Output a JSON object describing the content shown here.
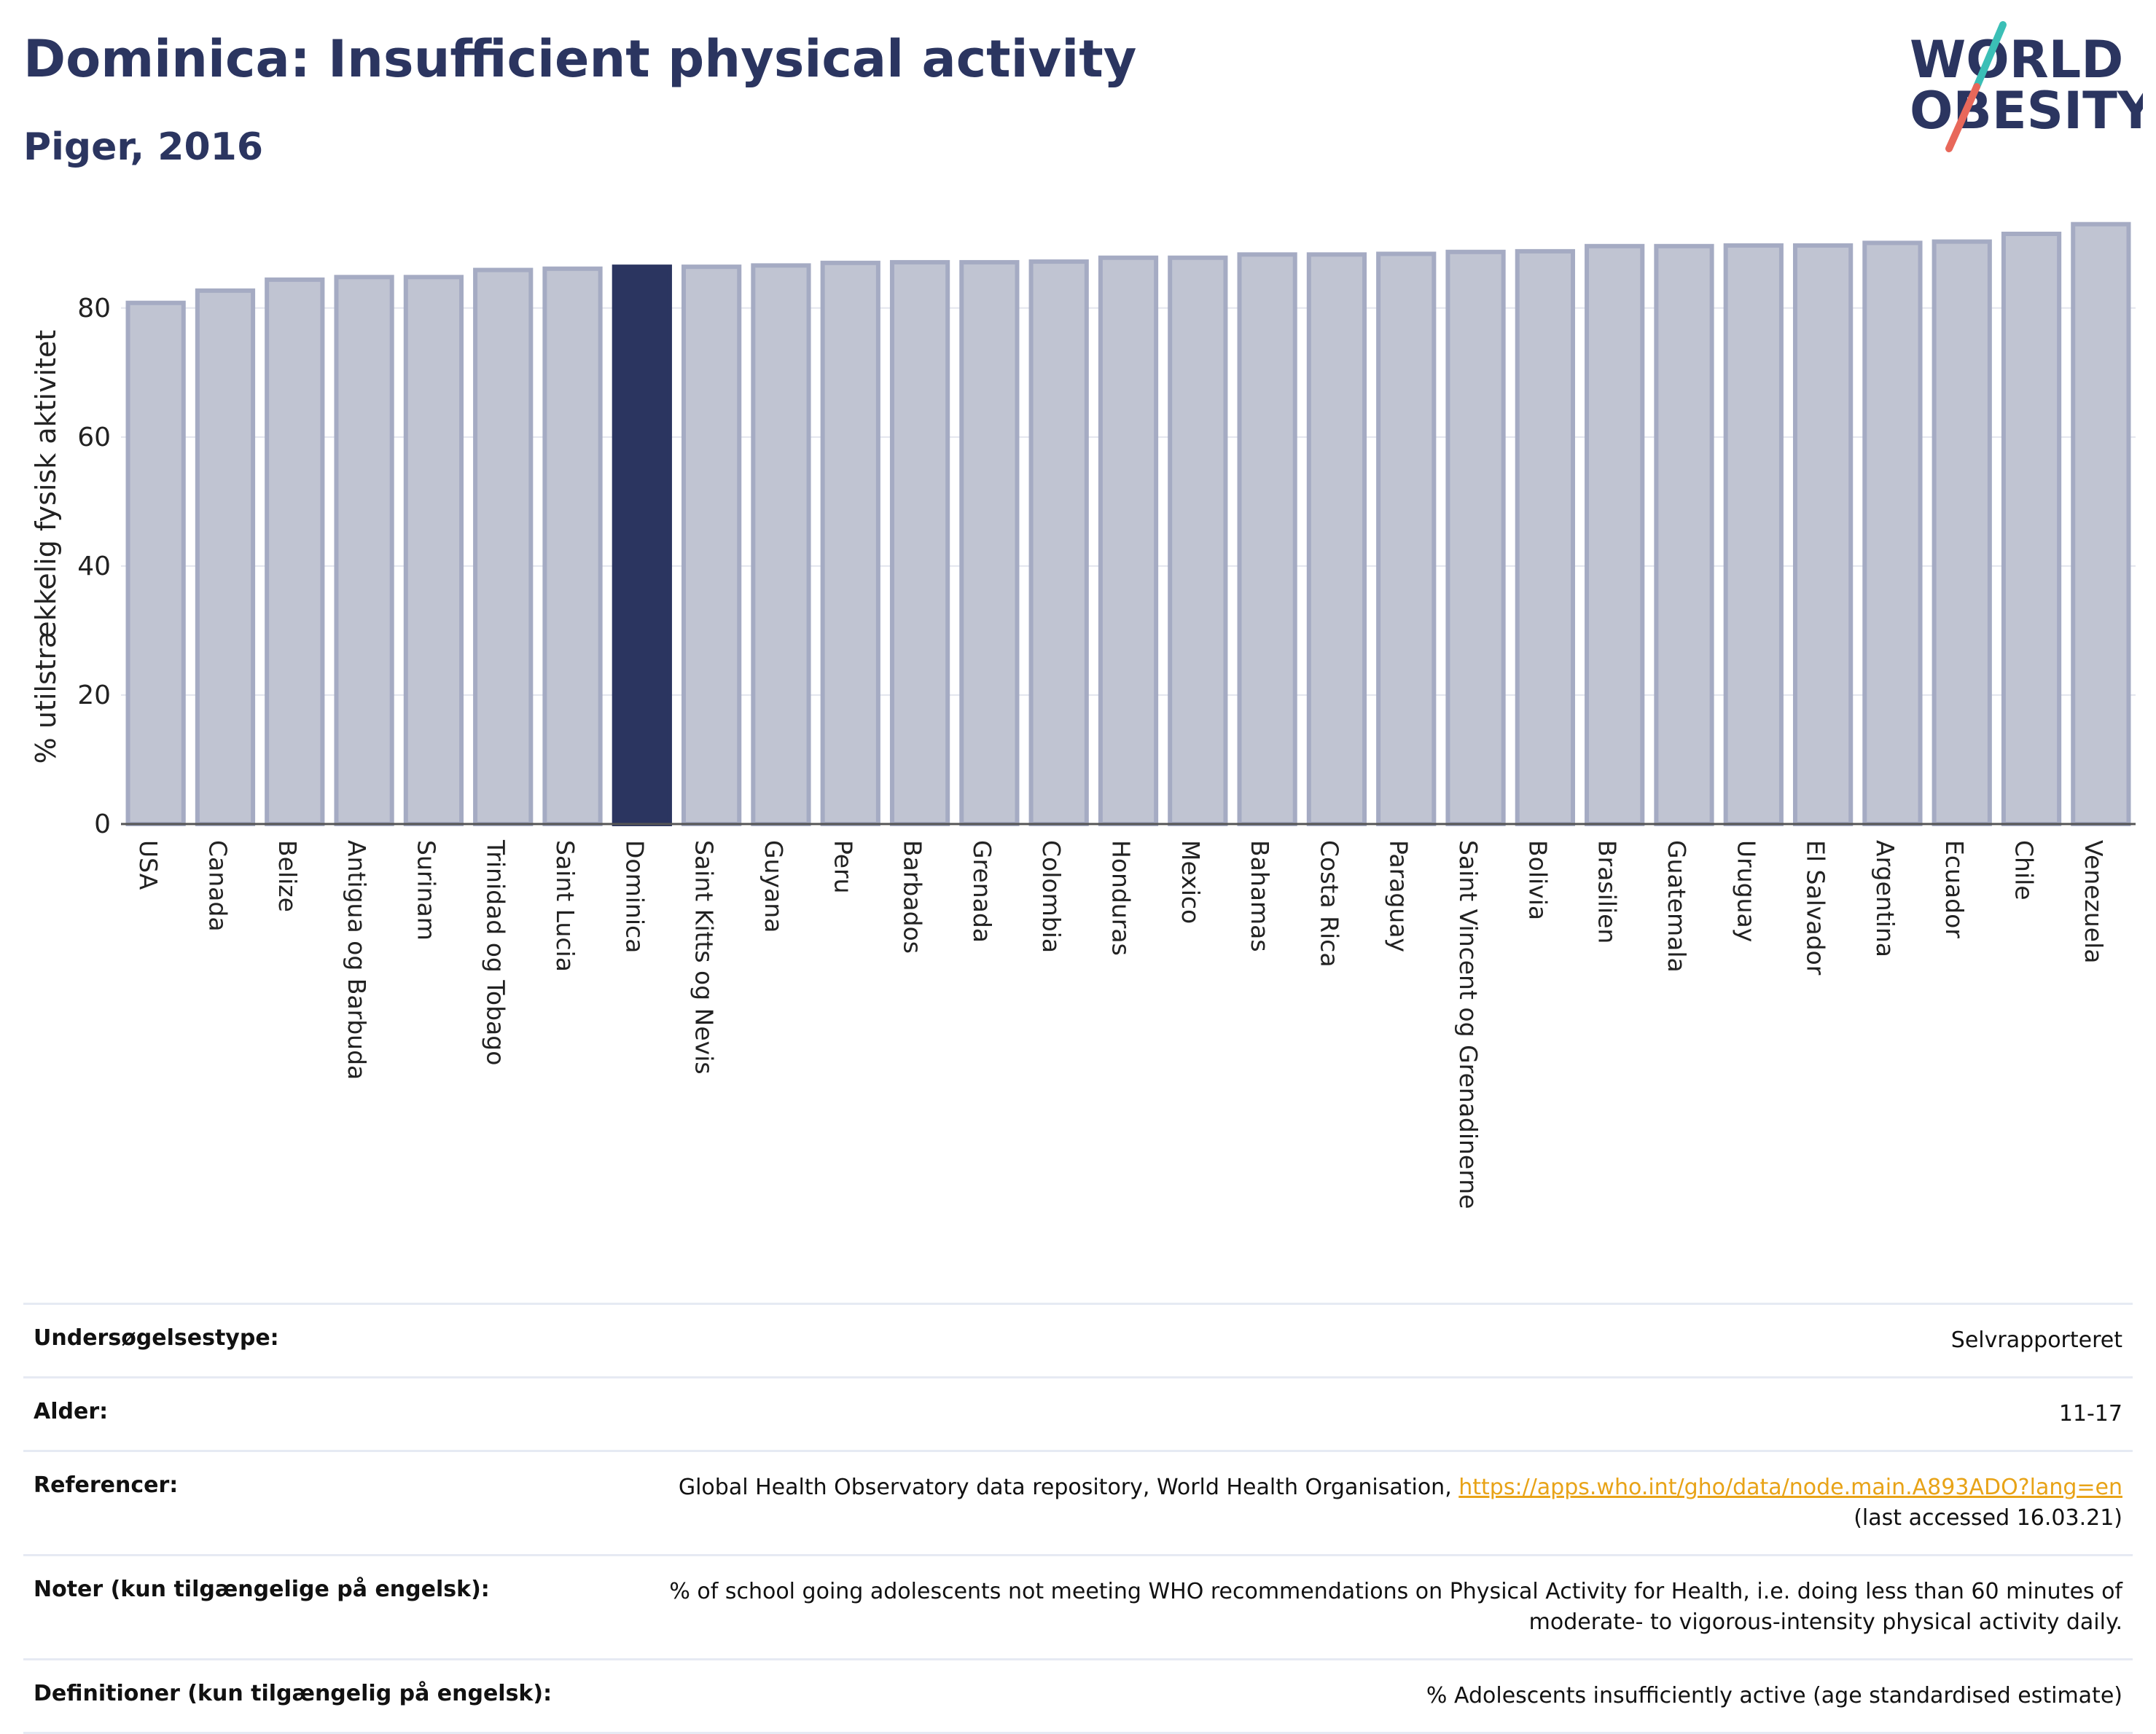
{
  "header": {
    "title": "Dominica: Insufficient physical activity",
    "subtitle": "Piger, 2016"
  },
  "logo": {
    "line1": "WORLD",
    "line2": "OBESITY",
    "colors": {
      "text": "#2b3560",
      "slash_top": "#3bbfb6",
      "slash_bottom": "#e8685a"
    }
  },
  "colors": {
    "bar_fill": "#c0c4d2",
    "bar_stroke": "#a5abc3",
    "highlight": "#2b3560",
    "grid": "#e3e6ee",
    "axis": "#555555"
  },
  "chart_data": {
    "type": "bar",
    "ylabel": "% utilstrækkelig fysisk aktivitet",
    "ylim": [
      0,
      95
    ],
    "yticks": [
      0,
      20,
      40,
      60,
      80
    ],
    "grid": true,
    "highlight": "Dominica",
    "categories": [
      "USA",
      "Canada",
      "Belize",
      "Antigua og Barbuda",
      "Surinam",
      "Trinidad og Tobago",
      "Saint Lucia",
      "Dominica",
      "Saint Kitts og Nevis",
      "Guyana",
      "Peru",
      "Barbados",
      "Grenada",
      "Colombia",
      "Honduras",
      "Mexico",
      "Bahamas",
      "Costa Rica",
      "Paraguay",
      "Saint Vincent og Grenadinerne",
      "Bolivia",
      "Brasilien",
      "Guatemala",
      "Uruguay",
      "El Salvador",
      "Argentina",
      "Ecuador",
      "Chile",
      "Venezuela"
    ],
    "values": [
      80.8,
      82.7,
      84.4,
      84.8,
      84.8,
      85.9,
      86.1,
      86.4,
      86.4,
      86.6,
      87.0,
      87.1,
      87.1,
      87.2,
      87.8,
      87.8,
      88.3,
      88.3,
      88.4,
      88.7,
      88.8,
      89.6,
      89.6,
      89.7,
      89.7,
      90.1,
      90.3,
      91.5,
      93.0
    ]
  },
  "meta": {
    "rows": [
      {
        "key": "Undersøgelsestype:",
        "value": "Selvrapporteret"
      },
      {
        "key": "Alder:",
        "value": "11-17"
      },
      {
        "key": "Referencer:",
        "value": "Global Health Observatory data repository, World Health Organisation, ",
        "link": "https://apps.who.int/gho/data/node.main.A893ADO?lang=en",
        "value2": "(last accessed 16.03.21)"
      },
      {
        "key": "Noter (kun tilgængelige på engelsk):",
        "value": "% of school going adolescents not meeting WHO recommendations on Physical Activity for Health, i.e. doing less than 60 minutes of moderate- to vigorous-intensity physical activity daily."
      },
      {
        "key": "Definitioner (kun tilgængelig på engelsk):",
        "value": "% Adolescents insufficiently active (age standardised estimate)"
      }
    ]
  }
}
